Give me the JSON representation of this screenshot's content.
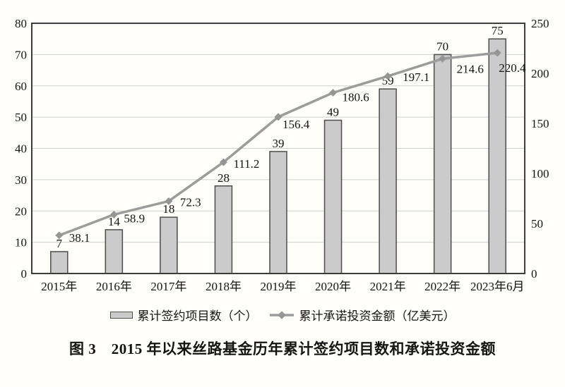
{
  "figure": {
    "caption": "图 3　2015 年以来丝路基金历年累计签约项目数和承诺投资金额"
  },
  "chart_data": {
    "type": "combo",
    "categories": [
      "2015年",
      "2016年",
      "2017年",
      "2018年",
      "2019年",
      "2020年",
      "2021年",
      "2022年",
      "2023年6月"
    ],
    "series": [
      {
        "name": "累计签约项目数（个）",
        "type": "bar",
        "axis": "left",
        "values": [
          7,
          14,
          18,
          28,
          39,
          49,
          59,
          70,
          75
        ]
      },
      {
        "name": "累计承诺投资金额（亿美元）",
        "type": "line",
        "axis": "right",
        "values": [
          38.1,
          58.9,
          72.3,
          111.2,
          156.4,
          180.6,
          197.1,
          214.6,
          220.4
        ],
        "label_offsets": [
          [
            14,
            3
          ],
          [
            14,
            5
          ],
          [
            16,
            1
          ],
          [
            14,
            2
          ],
          [
            6,
            10
          ],
          [
            13,
            6
          ],
          [
            21,
            1
          ],
          [
            20,
            14
          ],
          [
            2,
            21
          ]
        ]
      }
    ],
    "left_axis": {
      "min": 0,
      "max": 80,
      "step": 10,
      "tick_labels": [
        "0",
        "10",
        "20",
        "30",
        "40",
        "50",
        "60",
        "70",
        "80"
      ]
    },
    "right_axis": {
      "min": 0,
      "max": 250,
      "step": 50,
      "tick_labels": [
        "0",
        "50",
        "100",
        "150",
        "200",
        "250"
      ]
    },
    "grid": true,
    "legend_position": "bottom",
    "colors": {
      "background": "#fffefa",
      "bar_fill": "#cbcbcb",
      "bar_border": "#4d4d4d",
      "line": "#9c9c9c",
      "marker": "#959595",
      "grid": "#cfcfcf",
      "frame": "#3d3d3d",
      "text": "#141414"
    }
  }
}
